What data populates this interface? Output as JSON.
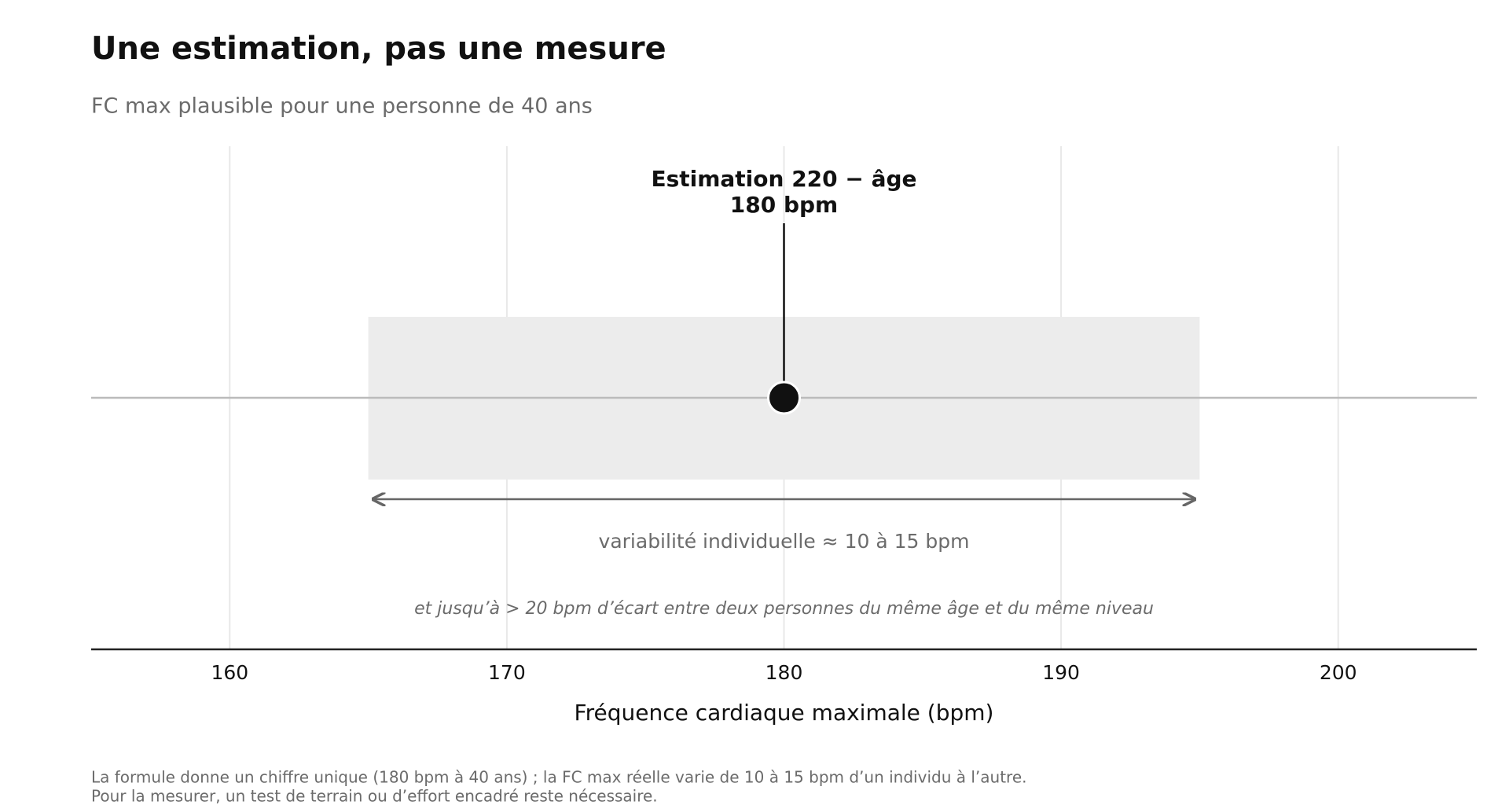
{
  "chart_data": {
    "type": "range",
    "title": "Une estimation, pas une mesure",
    "subtitle": "FC max plausible pour une personne de 40 ans",
    "xlabel": "Fréquence cardiaque maximale (bpm)",
    "xlim": [
      155,
      205
    ],
    "xticks": [
      160,
      170,
      180,
      190,
      200
    ],
    "grid": true,
    "values": [
      180
    ],
    "range": [
      165,
      195
    ],
    "point_color": "#111111",
    "band_color": "#ececec",
    "annotation": [
      "Estimation 220 − âge",
      "180 bpm"
    ],
    "range_label": "variabilité individuelle  ≈ 10 à 15 bpm",
    "note": "et jusqu’à > 20 bpm d’écart entre deux personnes du même âge et du même niveau",
    "footnote": [
      "La formule donne un chiffre unique (180 bpm à 40 ans) ; la FC max réelle varie de 10 à 15 bpm d’un individu à l’autre.",
      "Pour la mesurer, un test de terrain ou d’effort encadré reste nécessaire."
    ]
  }
}
